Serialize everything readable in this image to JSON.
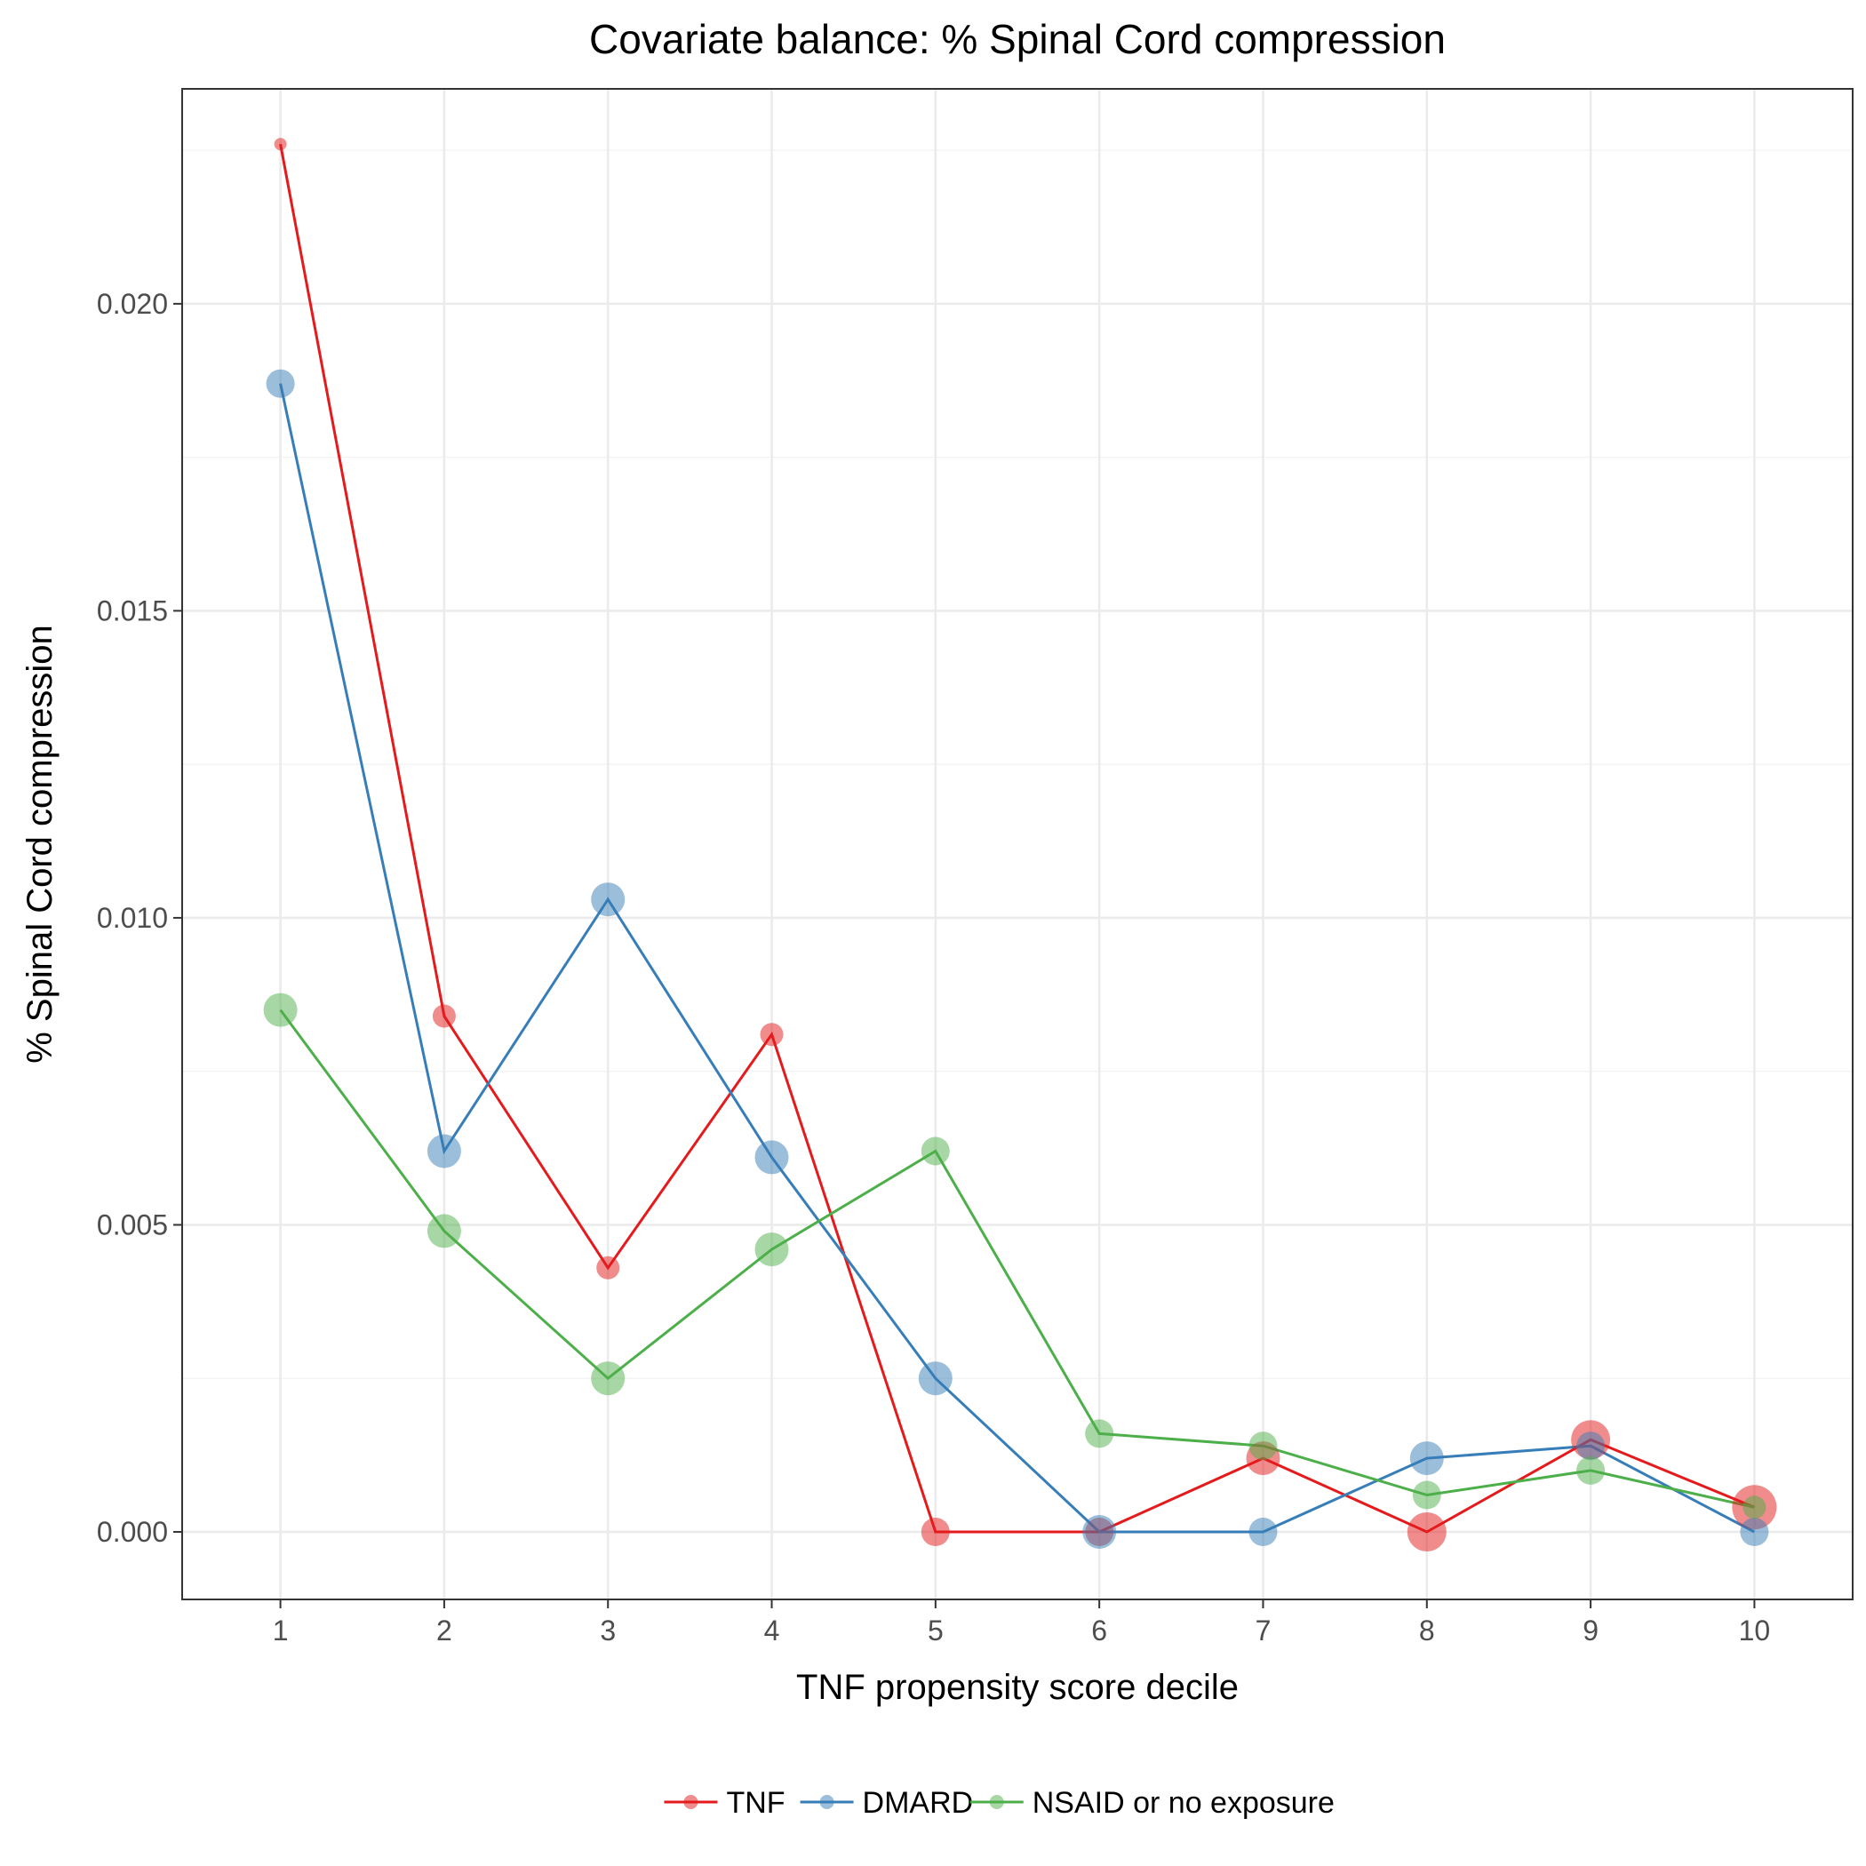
{
  "chart_data": {
    "type": "line",
    "title": "Covariate balance: % Spinal Cord compression",
    "xlabel": "TNF propensity score decile",
    "ylabel": "% Spinal Cord compression",
    "x": [
      1,
      2,
      3,
      4,
      5,
      6,
      7,
      8,
      9,
      10
    ],
    "x_tick_labels": [
      "1",
      "2",
      "3",
      "4",
      "5",
      "6",
      "7",
      "8",
      "9",
      "10"
    ],
    "xlim": [
      0.4,
      10.6
    ],
    "ylim": [
      -0.0011,
      0.0235
    ],
    "y_ticks": [
      0.0,
      0.005,
      0.01,
      0.015,
      0.02
    ],
    "y_tick_labels": [
      "0.000",
      "0.005",
      "0.010",
      "0.015",
      "0.020"
    ],
    "grid": true,
    "legend_position": "bottom",
    "point_size_note": "",
    "series": [
      {
        "name": "TNF",
        "color": "#E41A1C",
        "values": [
          0.0226,
          0.0084,
          0.0043,
          0.0081,
          0.0,
          0.0,
          0.0012,
          0.0,
          0.0015,
          0.0004
        ],
        "sizes": [
          1,
          3,
          3,
          3,
          4,
          4,
          5,
          6,
          6,
          7
        ]
      },
      {
        "name": "DMARD",
        "color": "#377EB8",
        "values": [
          0.0187,
          0.0062,
          0.0103,
          0.0061,
          0.0025,
          0.0,
          0.0,
          0.0012,
          0.0014,
          0.0
        ],
        "sizes": [
          4,
          5,
          5,
          5,
          5,
          5,
          4,
          5,
          4,
          4
        ]
      },
      {
        "name": "NSAID or no exposure",
        "color": "#4DAF4A",
        "values": [
          0.0085,
          0.0049,
          0.0025,
          0.0046,
          0.0062,
          0.0016,
          0.0014,
          0.0006,
          0.001,
          0.0004
        ],
        "sizes": [
          5,
          5,
          5,
          5,
          4,
          4,
          4,
          4,
          4,
          3
        ]
      }
    ]
  }
}
